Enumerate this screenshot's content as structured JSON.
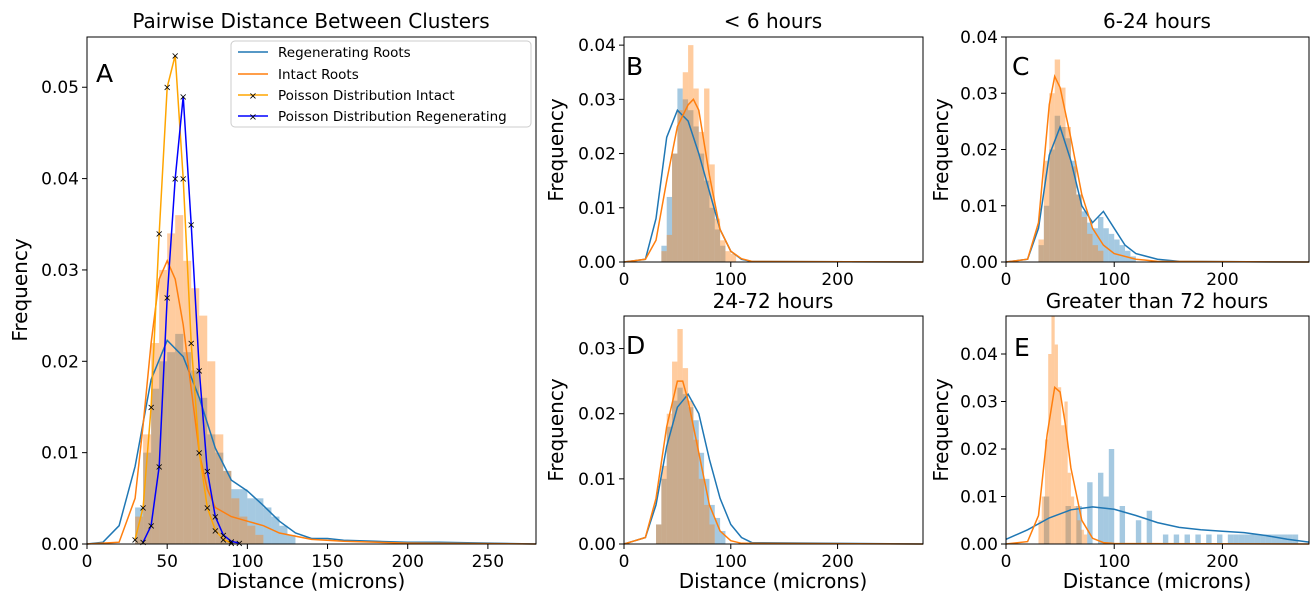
{
  "colors": {
    "regen": "#1f77b4",
    "intact": "#ff7f0e",
    "poisson_intact": "#ffa500",
    "poisson_regen": "#0000ff"
  },
  "chart_data": [
    {
      "type": "histogram",
      "panel_letter": "A",
      "title": "Pairwise Distance Between Clusters",
      "xlabel": "Distance (microns)",
      "ylabel": "Frequency",
      "xlim": [
        0,
        280
      ],
      "ylim": [
        0,
        0.0555
      ],
      "xticks": [
        0,
        50,
        100,
        150,
        200,
        250
      ],
      "yticks": [
        0.0,
        0.01,
        0.02,
        0.03,
        0.04,
        0.05
      ],
      "ytick_labels": [
        "0.00",
        "0.01",
        "0.02",
        "0.03",
        "0.04",
        "0.05"
      ],
      "legend": {
        "placement": "upper-right",
        "entries": [
          "Regenerating Roots",
          "Intact Roots",
          "Poisson Distribution Intact",
          "Poisson Distribution Regenerating"
        ]
      },
      "bins": {
        "start": 30,
        "width": 5
      },
      "series": [
        {
          "name": "Regenerating Roots",
          "kind": "hist+kde",
          "hist": [
            0.004,
            0.01,
            0.017,
            0.02,
            0.021,
            0.023,
            0.021,
            0.019,
            0.016,
            0.012,
            0.01,
            0.008,
            0.006,
            0.006,
            0.005,
            0.005,
            0.004,
            0.003,
            0.002,
            0.001
          ],
          "kde_x": [
            0,
            10,
            20,
            30,
            40,
            50,
            60,
            70,
            80,
            90,
            100,
            110,
            120,
            130,
            140,
            150,
            160,
            180,
            200,
            220,
            250,
            280
          ],
          "kde_y": [
            0.0,
            0.0002,
            0.002,
            0.0085,
            0.018,
            0.0223,
            0.0205,
            0.016,
            0.0105,
            0.007,
            0.0058,
            0.0042,
            0.0025,
            0.0012,
            0.0006,
            0.0006,
            0.0004,
            0.0003,
            0.0002,
            0.0002,
            0.0001,
            0.0
          ]
        },
        {
          "name": "Intact Roots",
          "kind": "hist+kde",
          "hist": [
            0.003,
            0.012,
            0.022,
            0.03,
            0.034,
            0.036,
            0.031,
            0.028,
            0.025,
            0.02,
            0.012,
            0.008,
            0.005,
            0.003,
            0.002,
            0.001
          ],
          "kde_x": [
            0,
            20,
            30,
            35,
            40,
            45,
            50,
            55,
            60,
            65,
            70,
            75,
            80,
            90,
            100,
            110,
            120,
            140,
            160,
            200,
            280
          ],
          "kde_y": [
            0.0,
            0.0002,
            0.005,
            0.013,
            0.022,
            0.029,
            0.031,
            0.029,
            0.024,
            0.017,
            0.01,
            0.006,
            0.004,
            0.003,
            0.0025,
            0.002,
            0.0012,
            0.0005,
            0.0003,
            0.0001,
            0.0
          ]
        },
        {
          "name": "Poisson Distribution Intact",
          "kind": "line+markers",
          "x": [
            30,
            35,
            40,
            45,
            50,
            55,
            60,
            65,
            70,
            75,
            80,
            85,
            90
          ],
          "y": [
            0.0005,
            0.004,
            0.015,
            0.034,
            0.05,
            0.0535,
            0.04,
            0.022,
            0.01,
            0.004,
            0.0015,
            0.0005,
            0.0001
          ]
        },
        {
          "name": "Poisson Distribution Regenerating",
          "kind": "line+markers",
          "x": [
            35,
            40,
            45,
            50,
            55,
            60,
            65,
            70,
            75,
            80,
            85,
            90,
            95
          ],
          "y": [
            0.0002,
            0.002,
            0.0085,
            0.027,
            0.04,
            0.049,
            0.035,
            0.019,
            0.008,
            0.003,
            0.001,
            0.0003,
            0.0001
          ]
        }
      ]
    },
    {
      "type": "histogram",
      "panel_letter": "B",
      "title": "< 6 hours",
      "xlabel": "",
      "ylabel": "Frequency",
      "xlim": [
        0,
        280
      ],
      "ylim": [
        0,
        0.0415
      ],
      "xticks": [
        0,
        100,
        200
      ],
      "yticks": [
        0.0,
        0.01,
        0.02,
        0.03,
        0.04
      ],
      "ytick_labels": [
        "0.00",
        "0.01",
        "0.02",
        "0.03",
        "0.04"
      ],
      "bins": {
        "start": 35,
        "width": 5
      },
      "series": [
        {
          "name": "Regenerating Roots",
          "kind": "hist+kde",
          "hist": [
            0.003,
            0.012,
            0.02,
            0.032,
            0.03,
            0.028,
            0.025,
            0.02,
            0.015,
            0.01,
            0.006,
            0.003
          ],
          "kde_x": [
            0,
            20,
            30,
            40,
            50,
            60,
            70,
            80,
            90,
            100,
            110,
            120,
            280
          ],
          "kde_y": [
            0.0,
            0.0005,
            0.008,
            0.023,
            0.028,
            0.026,
            0.02,
            0.013,
            0.006,
            0.002,
            0.0005,
            0.0001,
            0.0
          ]
        },
        {
          "name": "Intact Roots",
          "kind": "hist+kde",
          "hist": [
            0.002,
            0.005,
            0.02,
            0.028,
            0.035,
            0.04,
            0.032,
            0.024,
            0.032,
            0.018,
            0.008,
            0.004,
            0.002,
            0.0015
          ],
          "kde_x": [
            0,
            20,
            30,
            40,
            50,
            60,
            65,
            70,
            80,
            90,
            100,
            110,
            120,
            280
          ],
          "kde_y": [
            0.0,
            0.0005,
            0.004,
            0.015,
            0.025,
            0.029,
            0.03,
            0.028,
            0.016,
            0.006,
            0.002,
            0.0006,
            0.0001,
            0.0
          ]
        }
      ]
    },
    {
      "type": "histogram",
      "panel_letter": "C",
      "title": "6-24 hours",
      "xlabel": "",
      "ylabel": "Frequency",
      "xlim": [
        0,
        280
      ],
      "ylim": [
        0,
        0.04
      ],
      "xticks": [
        0,
        100,
        200
      ],
      "yticks": [
        0.0,
        0.01,
        0.02,
        0.03,
        0.04
      ],
      "ytick_labels": [
        "0.00",
        "0.01",
        "0.02",
        "0.03",
        "0.04"
      ],
      "bins": {
        "start": 30,
        "width": 5
      },
      "series": [
        {
          "name": "Regenerating Roots",
          "kind": "hist+kde",
          "hist": [
            0.003,
            0.01,
            0.02,
            0.026,
            0.024,
            0.022,
            0.018,
            0.012,
            0.009,
            0.007,
            0.006,
            0.008,
            0.006,
            0.005,
            0.004,
            0.003,
            0.002,
            0.001
          ],
          "kde_x": [
            0,
            20,
            30,
            40,
            50,
            60,
            70,
            80,
            90,
            100,
            110,
            120,
            140,
            160,
            280
          ],
          "kde_y": [
            0.0,
            0.0005,
            0.006,
            0.019,
            0.024,
            0.018,
            0.01,
            0.007,
            0.009,
            0.006,
            0.003,
            0.0015,
            0.0005,
            0.0001,
            0.0
          ]
        },
        {
          "name": "Intact Roots",
          "kind": "hist+kde",
          "hist": [
            0.004,
            0.018,
            0.03,
            0.036,
            0.031,
            0.024,
            0.017,
            0.012,
            0.008,
            0.005,
            0.003,
            0.002
          ],
          "kde_x": [
            0,
            20,
            30,
            40,
            45,
            50,
            60,
            70,
            80,
            90,
            100,
            120,
            140,
            280
          ],
          "kde_y": [
            0.0,
            0.0005,
            0.007,
            0.028,
            0.033,
            0.031,
            0.022,
            0.012,
            0.006,
            0.003,
            0.0015,
            0.0005,
            0.0001,
            0.0
          ]
        }
      ]
    },
    {
      "type": "histogram",
      "panel_letter": "D",
      "title": "24-72 hours",
      "xlabel": "Distance (microns)",
      "ylabel": "Frequency",
      "xlim": [
        0,
        280
      ],
      "ylim": [
        0,
        0.035
      ],
      "xticks": [
        0,
        100,
        200
      ],
      "yticks": [
        0.0,
        0.01,
        0.02,
        0.03
      ],
      "ytick_labels": [
        "0.00",
        "0.01",
        "0.02",
        "0.03"
      ],
      "bins": {
        "start": 30,
        "width": 5
      },
      "series": [
        {
          "name": "Regenerating Roots",
          "kind": "hist+kde",
          "hist": [
            0.003,
            0.01,
            0.018,
            0.022,
            0.024,
            0.023,
            0.021,
            0.019,
            0.014,
            0.01,
            0.006,
            0.004,
            0.002
          ],
          "kde_x": [
            0,
            20,
            30,
            40,
            50,
            60,
            70,
            80,
            90,
            100,
            110,
            120,
            280
          ],
          "kde_y": [
            0.0,
            0.001,
            0.006,
            0.015,
            0.021,
            0.023,
            0.02,
            0.013,
            0.007,
            0.003,
            0.001,
            0.0002,
            0.0
          ]
        },
        {
          "name": "Intact Roots",
          "kind": "hist+kde",
          "hist": [
            0.003,
            0.012,
            0.02,
            0.028,
            0.033,
            0.027,
            0.022,
            0.016,
            0.01,
            0.006,
            0.003
          ],
          "kde_x": [
            0,
            20,
            30,
            40,
            50,
            55,
            60,
            70,
            80,
            90,
            100,
            110,
            280
          ],
          "kde_y": [
            0.0,
            0.001,
            0.007,
            0.018,
            0.025,
            0.025,
            0.022,
            0.014,
            0.006,
            0.002,
            0.0005,
            0.0001,
            0.0
          ]
        }
      ]
    },
    {
      "type": "histogram",
      "panel_letter": "E",
      "title": "Greater than 72 hours",
      "xlabel": "Distance (microns)",
      "ylabel": "Frequency",
      "xlim": [
        0,
        280
      ],
      "ylim": [
        0,
        0.048
      ],
      "xticks": [
        0,
        100,
        200
      ],
      "yticks": [
        0.0,
        0.01,
        0.02,
        0.03,
        0.04
      ],
      "ytick_labels": [
        "0.00",
        "0.01",
        "0.02",
        "0.03",
        "0.04"
      ],
      "series": [
        {
          "name": "Regenerating Roots",
          "kind": "hist+kde",
          "bins": {
            "start": 30,
            "width": 5
          },
          "hist": [
            0.0,
            0.01,
            0.0,
            0.0,
            0.0,
            0.008,
            0.0,
            0.008,
            0.0,
            0.013,
            0.0,
            0.015,
            0.01,
            0.02,
            0.0,
            0.008,
            0.0,
            0.0,
            0.005,
            0.0,
            0.007,
            0.0,
            0.0,
            0.002,
            0.0,
            0.002,
            0.0,
            0.002,
            0.0,
            0.002,
            0.0,
            0.002,
            0.0,
            0.002,
            0.0,
            0.002,
            0.002,
            0.002,
            0.002,
            0.002,
            0.002,
            0.002,
            0.002,
            0.002,
            0.002,
            0.002,
            0.002,
            0.002
          ],
          "kde_x": [
            0,
            20,
            40,
            60,
            80,
            100,
            120,
            140,
            160,
            180,
            200,
            220,
            240,
            260,
            280
          ],
          "kde_y": [
            0.001,
            0.003,
            0.0055,
            0.0072,
            0.0078,
            0.0073,
            0.006,
            0.0045,
            0.0035,
            0.003,
            0.0027,
            0.0024,
            0.0018,
            0.001,
            0.0004
          ]
        },
        {
          "name": "Intact Roots",
          "kind": "hist+kde",
          "bins": {
            "start": 30,
            "width": 3
          },
          "hist": [
            0.005,
            0.01,
            0.022,
            0.04,
            0.048,
            0.042,
            0.033,
            0.025,
            0.03,
            0.015,
            0.01,
            0.008,
            0.005,
            0.003,
            0.002
          ],
          "kde_x": [
            0,
            20,
            30,
            38,
            45,
            50,
            55,
            60,
            70,
            80,
            90,
            100,
            280
          ],
          "kde_y": [
            0.0,
            0.0005,
            0.006,
            0.023,
            0.033,
            0.032,
            0.025,
            0.016,
            0.005,
            0.0012,
            0.0003,
            0.0001,
            0.0
          ]
        }
      ]
    }
  ]
}
